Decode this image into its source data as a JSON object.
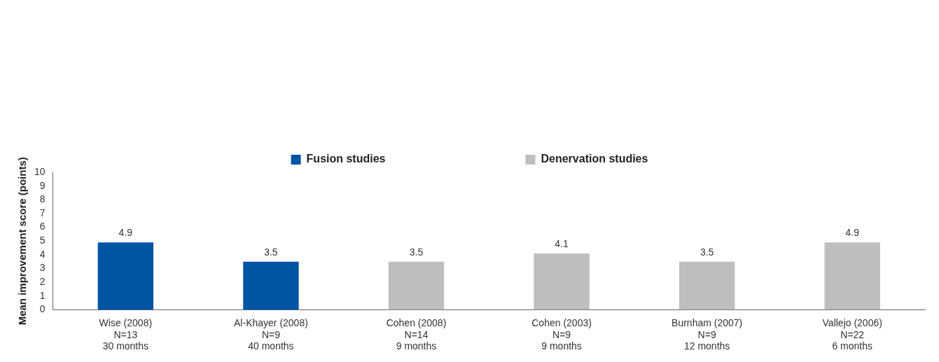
{
  "chart_data": {
    "type": "bar",
    "ylabel": "Mean improvement score (points)",
    "categories": [
      "Wise (2008)\nN=13\n30 months",
      "Al-Khayer (2008)\nN=9\n40 months",
      "Cohen (2008)\nN=14\n9 months",
      "Cohen (2003)\nN=9\n9 months",
      "Burnham (2007)\nN=9\n12 months",
      "Vallejo (2006)\nN=22\n6 months"
    ],
    "series": [
      {
        "name": "Fusion studies",
        "color": "#0055a4",
        "values": [
          4.9,
          3.5,
          null,
          null,
          null,
          null
        ]
      },
      {
        "name": "Denervation studies",
        "color": "#bcbec0",
        "values": [
          null,
          null,
          3.5,
          4.1,
          3.5,
          4.9
        ]
      }
    ],
    "ylim": [
      0,
      10
    ],
    "yticks": [
      0,
      1,
      2,
      3,
      4,
      5,
      6,
      7,
      8,
      9,
      10
    ],
    "grid": false,
    "legend": "top",
    "data_labels": true
  }
}
